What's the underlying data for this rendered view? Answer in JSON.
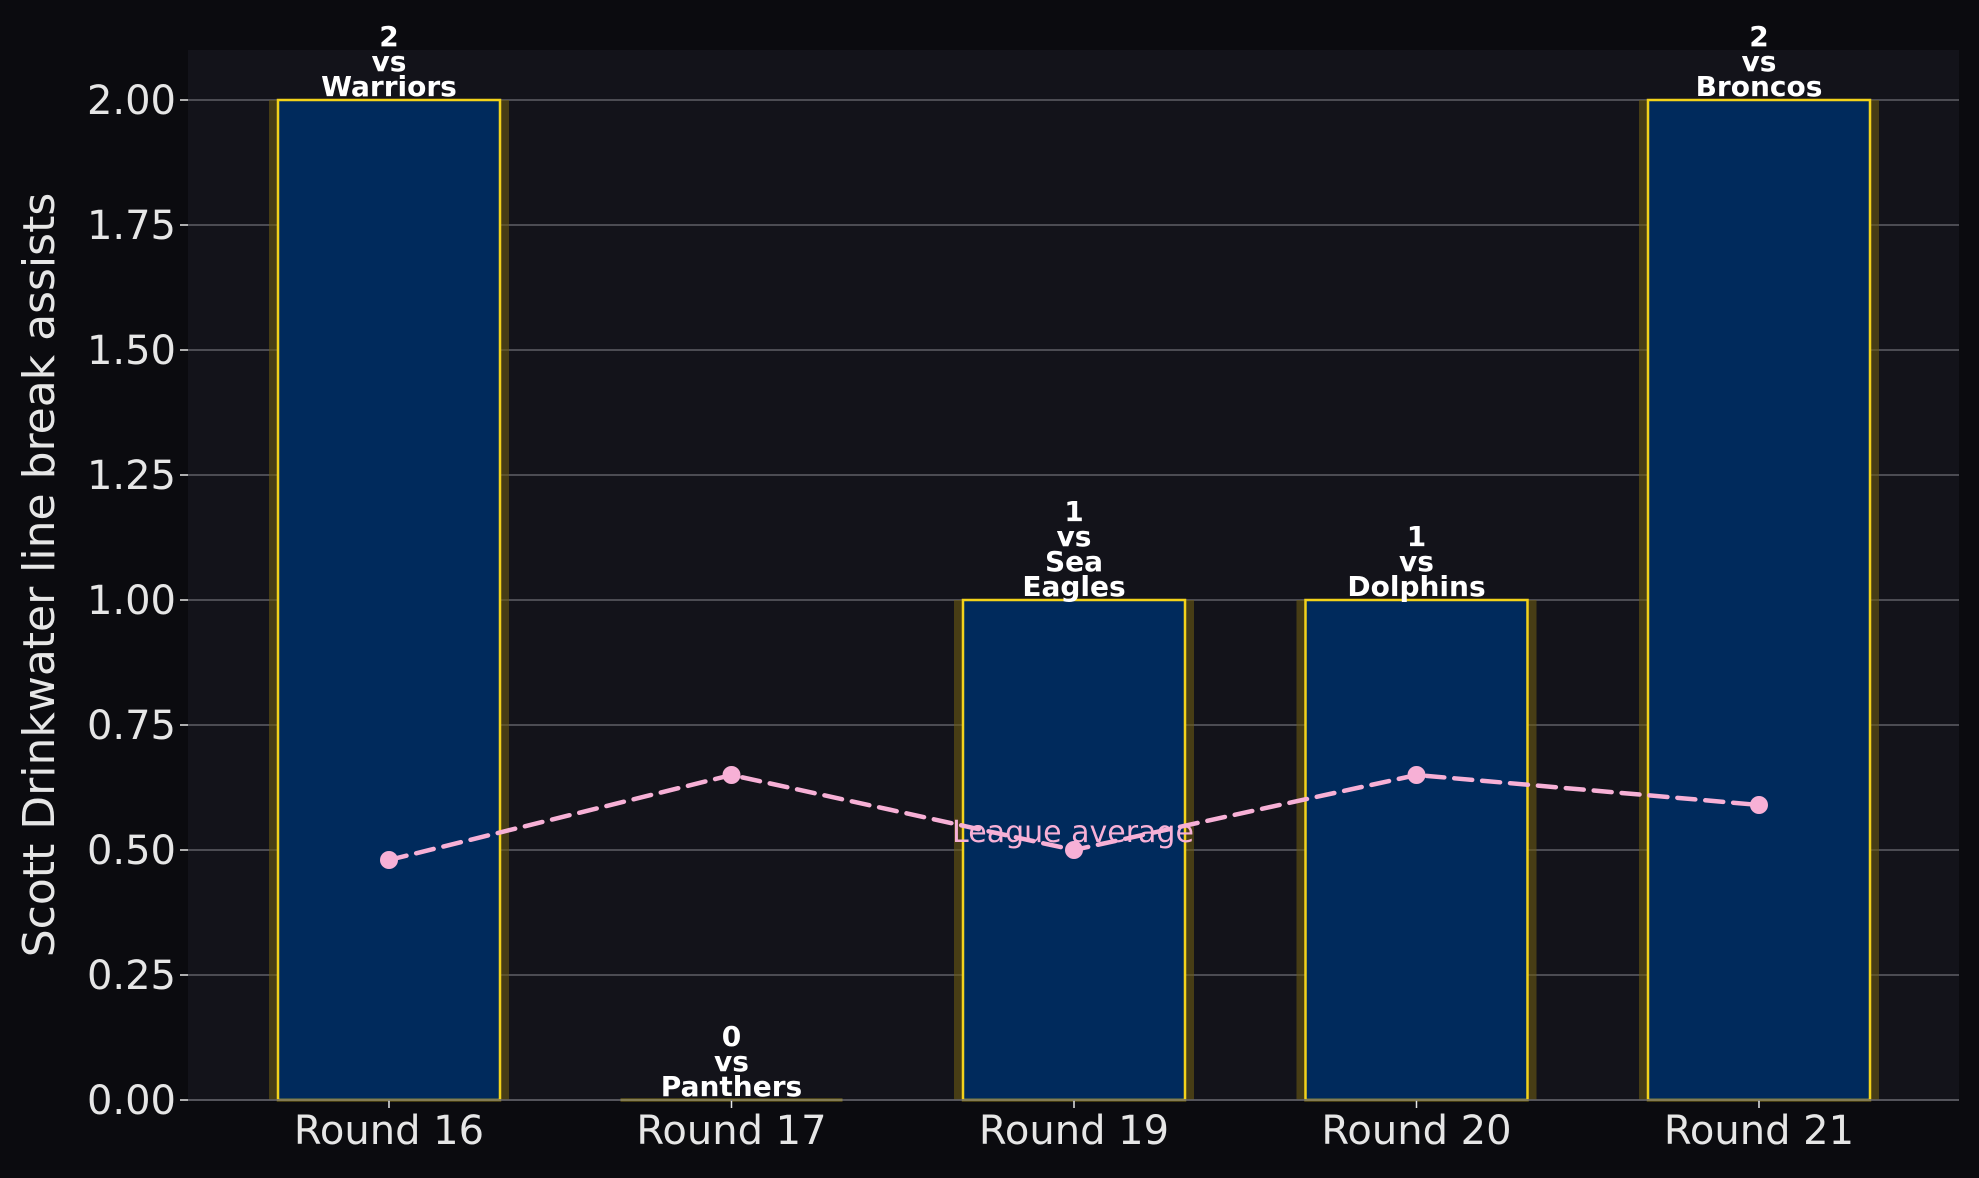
{
  "colors": {
    "page_background": "#0b0b0f",
    "plot_background": "#13131a",
    "grid": "#5f5f66",
    "bar_fill": "#002a5c",
    "bar_edge": "#f2d21b",
    "bar_glow": "#6b5a12",
    "average_line": "#f7b0d6",
    "tick_text": "#e6e6e6",
    "label_text": "#ffffff"
  },
  "chart_data": {
    "type": "bar",
    "title": "",
    "xlabel": "",
    "ylabel": "Scott Drinkwater line break assists",
    "ylim": [
      0,
      2.1
    ],
    "yticks": [
      "0.00",
      "0.25",
      "0.50",
      "0.75",
      "1.00",
      "1.25",
      "1.50",
      "1.75",
      "2.00"
    ],
    "grid": "horizontal",
    "categories": [
      "Round 16",
      "Round 17",
      "Round 19",
      "Round 20",
      "Round 21"
    ],
    "series": [
      {
        "values": [
          2,
          0,
          1,
          1,
          2
        ]
      },
      {
        "name": "League average",
        "type": "line",
        "style": "dashed",
        "values": [
          0.48,
          0.65,
          0.5,
          0.65,
          0.59
        ]
      }
    ],
    "bar_labels": [
      [
        "2",
        "vs",
        "Warriors"
      ],
      [
        "0",
        "vs",
        "Panthers"
      ],
      [
        "1",
        "vs",
        "Sea",
        "Eagles"
      ],
      [
        "1",
        "vs",
        "Dolphins"
      ],
      [
        "2",
        "vs",
        "Broncos"
      ]
    ],
    "annotation": "League average"
  }
}
